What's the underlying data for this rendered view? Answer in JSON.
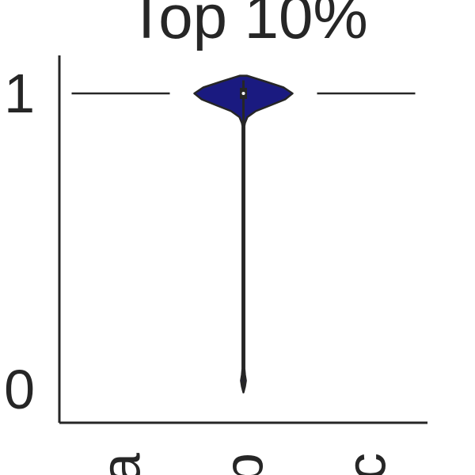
{
  "chart_data": {
    "type": "violin",
    "title": "Top 10%",
    "xlabel": "",
    "ylabel": "",
    "ylim": [
      -0.05,
      1.07
    ],
    "yticks": [
      0,
      1
    ],
    "categories": [
      "a",
      "b",
      "c"
    ],
    "violins": [
      {
        "category": "a",
        "color": "#1a1a80",
        "median": 1,
        "profile": [
          [
            1,
            0
          ]
        ]
      },
      {
        "category": "b",
        "color": "#1a1a80",
        "median": 1,
        "profile": [
          [
            -0.01,
            0.0
          ],
          [
            0.01,
            0.03
          ],
          [
            0.03,
            0.05
          ],
          [
            0.05,
            0.03
          ],
          [
            0.07,
            0.02
          ],
          [
            0.1,
            0.02
          ],
          [
            0.5,
            0.02
          ],
          [
            0.89,
            0.02
          ],
          [
            0.9,
            0.03
          ],
          [
            0.92,
            0.08
          ],
          [
            0.94,
            0.25
          ],
          [
            0.96,
            0.55
          ],
          [
            0.98,
            0.85
          ],
          [
            1.0,
            1.0
          ],
          [
            1.02,
            0.82
          ],
          [
            1.04,
            0.45
          ],
          [
            1.06,
            0.07
          ]
        ]
      },
      {
        "category": "c",
        "color": "#1a1a80",
        "median": 1,
        "profile": [
          [
            1,
            0
          ]
        ]
      }
    ],
    "grid": false
  },
  "colors": {
    "axis": "#262626",
    "violin_fill": "#1a1a80",
    "median_dot": "#ffffff"
  }
}
